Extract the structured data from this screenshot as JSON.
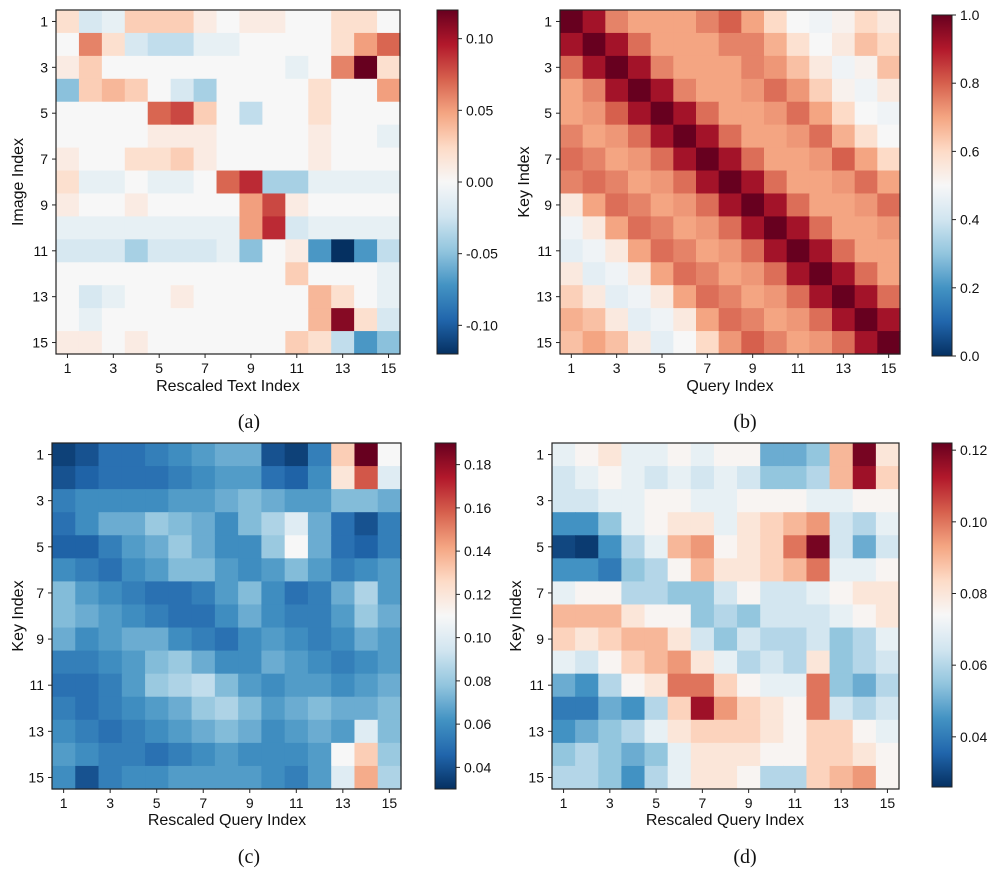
{
  "chart_data": [
    {
      "type": "heatmap",
      "caption": "(a)",
      "xlabel": "Rescaled Text Index",
      "ylabel": "Image Index",
      "x_ticks": [
        "1",
        "3",
        "5",
        "7",
        "9",
        "11",
        "13",
        "15"
      ],
      "y_ticks": [
        "1",
        "3",
        "5",
        "7",
        "9",
        "11",
        "13",
        "15"
      ],
      "colorscale": "RdBu_r",
      "vmin": -0.12,
      "vmax": 0.12,
      "colorbar_ticks": [
        {
          "value": 0.1,
          "label": "0.10"
        },
        {
          "value": 0.05,
          "label": "0.05"
        },
        {
          "value": 0.0,
          "label": "0.00"
        },
        {
          "value": -0.05,
          "label": "-0.05"
        },
        {
          "value": -0.1,
          "label": "-0.10"
        }
      ],
      "values": [
        [
          0.02,
          -0.02,
          -0.01,
          0.03,
          0.03,
          0.03,
          0.01,
          0.0,
          0.01,
          0.01,
          0.0,
          0.0,
          0.02,
          0.02,
          0.0
        ],
        [
          0.0,
          0.06,
          0.02,
          -0.02,
          -0.03,
          -0.03,
          -0.01,
          -0.01,
          0.0,
          0.0,
          0.0,
          0.0,
          0.02,
          0.05,
          0.07
        ],
        [
          0.01,
          0.03,
          0.0,
          0.0,
          0.0,
          0.0,
          0.0,
          0.0,
          0.0,
          0.0,
          -0.01,
          0.0,
          0.06,
          0.12,
          0.02
        ],
        [
          -0.05,
          0.03,
          0.04,
          0.03,
          0.0,
          -0.02,
          -0.04,
          0.0,
          0.0,
          0.0,
          0.0,
          0.02,
          0.0,
          0.0,
          0.05
        ],
        [
          0.0,
          0.0,
          0.0,
          0.0,
          0.07,
          0.08,
          0.03,
          0.0,
          -0.03,
          0.0,
          0.0,
          0.02,
          0.0,
          0.0,
          0.0
        ],
        [
          0.0,
          0.0,
          0.0,
          0.0,
          0.01,
          0.01,
          0.01,
          0.0,
          0.0,
          0.0,
          0.0,
          0.01,
          0.0,
          0.0,
          -0.01
        ],
        [
          0.01,
          0.0,
          0.0,
          0.02,
          0.02,
          0.03,
          0.01,
          0.0,
          0.0,
          0.0,
          0.0,
          0.01,
          0.0,
          0.0,
          0.0
        ],
        [
          0.02,
          -0.01,
          -0.01,
          0.0,
          -0.01,
          -0.01,
          0.0,
          0.07,
          0.09,
          -0.04,
          -0.04,
          -0.01,
          -0.01,
          -0.01,
          -0.01
        ],
        [
          0.01,
          0.0,
          0.0,
          0.01,
          0.0,
          0.0,
          0.0,
          0.0,
          0.05,
          0.08,
          0.01,
          0.0,
          0.0,
          0.0,
          0.0
        ],
        [
          -0.01,
          -0.01,
          -0.01,
          -0.01,
          -0.01,
          -0.01,
          -0.01,
          -0.01,
          0.05,
          0.09,
          -0.02,
          -0.01,
          -0.01,
          -0.01,
          -0.01
        ],
        [
          -0.02,
          -0.02,
          -0.02,
          -0.04,
          -0.02,
          -0.02,
          -0.02,
          -0.01,
          -0.05,
          0.0,
          0.01,
          -0.07,
          -0.12,
          -0.07,
          -0.03
        ],
        [
          0.0,
          0.0,
          0.0,
          0.0,
          0.0,
          0.0,
          0.0,
          0.0,
          0.0,
          0.0,
          0.03,
          0.0,
          0.0,
          0.0,
          -0.01
        ],
        [
          0.0,
          -0.02,
          -0.01,
          0.0,
          0.0,
          0.01,
          0.0,
          0.0,
          0.0,
          0.0,
          0.0,
          0.04,
          0.02,
          0.0,
          -0.01
        ],
        [
          0.0,
          -0.01,
          0.0,
          0.0,
          0.0,
          0.0,
          0.0,
          0.0,
          0.0,
          0.0,
          0.0,
          0.04,
          0.11,
          0.02,
          -0.02
        ],
        [
          0.01,
          0.01,
          0.0,
          0.01,
          0.0,
          0.0,
          0.0,
          0.0,
          0.0,
          0.0,
          0.03,
          0.02,
          -0.03,
          -0.07,
          -0.05
        ]
      ]
    },
    {
      "type": "heatmap",
      "caption": "(b)",
      "xlabel": "Query Index",
      "ylabel": "Key Index",
      "x_ticks": [
        "1",
        "3",
        "5",
        "7",
        "9",
        "11",
        "13",
        "15"
      ],
      "y_ticks": [
        "1",
        "3",
        "5",
        "7",
        "9",
        "11",
        "13",
        "15"
      ],
      "colorscale": "RdBu_r",
      "vmin": 0.0,
      "vmax": 1.0,
      "colorbar_ticks": [
        {
          "value": 1.0,
          "label": "1.0"
        },
        {
          "value": 0.8,
          "label": "0.8"
        },
        {
          "value": 0.6,
          "label": "0.6"
        },
        {
          "value": 0.4,
          "label": "0.4"
        },
        {
          "value": 0.2,
          "label": "0.2"
        },
        {
          "value": 0.0,
          "label": "0.0"
        }
      ],
      "values": [
        [
          1.0,
          0.92,
          0.75,
          0.7,
          0.7,
          0.7,
          0.75,
          0.8,
          0.7,
          0.6,
          0.5,
          0.48,
          0.52,
          0.6,
          0.55
        ],
        [
          0.92,
          1.0,
          0.92,
          0.78,
          0.7,
          0.7,
          0.7,
          0.75,
          0.75,
          0.68,
          0.58,
          0.5,
          0.55,
          0.65,
          0.6
        ],
        [
          0.78,
          0.92,
          1.0,
          0.92,
          0.75,
          0.7,
          0.7,
          0.7,
          0.75,
          0.72,
          0.65,
          0.55,
          0.48,
          0.52,
          0.65
        ],
        [
          0.7,
          0.75,
          0.92,
          1.0,
          0.92,
          0.75,
          0.7,
          0.7,
          0.72,
          0.78,
          0.72,
          0.62,
          0.52,
          0.48,
          0.55
        ],
        [
          0.7,
          0.72,
          0.8,
          0.92,
          1.0,
          0.92,
          0.78,
          0.7,
          0.7,
          0.72,
          0.78,
          0.7,
          0.6,
          0.5,
          0.48
        ],
        [
          0.75,
          0.7,
          0.72,
          0.78,
          0.92,
          1.0,
          0.92,
          0.78,
          0.7,
          0.7,
          0.72,
          0.78,
          0.68,
          0.58,
          0.5
        ],
        [
          0.78,
          0.75,
          0.7,
          0.72,
          0.78,
          0.92,
          1.0,
          0.92,
          0.78,
          0.7,
          0.7,
          0.72,
          0.8,
          0.7,
          0.6
        ],
        [
          0.75,
          0.78,
          0.75,
          0.7,
          0.72,
          0.78,
          0.92,
          1.0,
          0.92,
          0.78,
          0.7,
          0.7,
          0.72,
          0.78,
          0.7
        ],
        [
          0.55,
          0.7,
          0.78,
          0.75,
          0.7,
          0.72,
          0.78,
          0.92,
          1.0,
          0.92,
          0.78,
          0.7,
          0.7,
          0.72,
          0.78
        ],
        [
          0.48,
          0.55,
          0.7,
          0.78,
          0.75,
          0.7,
          0.72,
          0.78,
          0.92,
          1.0,
          0.92,
          0.78,
          0.7,
          0.7,
          0.72
        ],
        [
          0.45,
          0.48,
          0.55,
          0.7,
          0.78,
          0.75,
          0.7,
          0.72,
          0.78,
          0.92,
          1.0,
          0.92,
          0.78,
          0.7,
          0.7
        ],
        [
          0.55,
          0.45,
          0.48,
          0.55,
          0.7,
          0.78,
          0.75,
          0.7,
          0.72,
          0.78,
          0.92,
          1.0,
          0.92,
          0.78,
          0.7
        ],
        [
          0.62,
          0.55,
          0.45,
          0.48,
          0.55,
          0.7,
          0.78,
          0.75,
          0.7,
          0.72,
          0.78,
          0.92,
          1.0,
          0.92,
          0.78
        ],
        [
          0.68,
          0.65,
          0.55,
          0.45,
          0.48,
          0.55,
          0.7,
          0.78,
          0.75,
          0.7,
          0.72,
          0.78,
          0.92,
          1.0,
          0.92
        ],
        [
          0.65,
          0.7,
          0.65,
          0.55,
          0.45,
          0.5,
          0.6,
          0.72,
          0.8,
          0.75,
          0.7,
          0.72,
          0.78,
          0.92,
          1.0
        ]
      ]
    },
    {
      "type": "heatmap",
      "caption": "(c)",
      "xlabel": "Rescaled Query Index",
      "ylabel": "Key Index",
      "x_ticks": [
        "1",
        "3",
        "5",
        "7",
        "9",
        "11",
        "13",
        "15"
      ],
      "y_ticks": [
        "1",
        "3",
        "5",
        "7",
        "9",
        "11",
        "13",
        "15"
      ],
      "colorscale": "RdBu_r",
      "vmin": 0.03,
      "vmax": 0.19,
      "colorbar_ticks": [
        {
          "value": 0.18,
          "label": "0.18"
        },
        {
          "value": 0.16,
          "label": "0.16"
        },
        {
          "value": 0.14,
          "label": "0.14"
        },
        {
          "value": 0.12,
          "label": "0.12"
        },
        {
          "value": 0.1,
          "label": "0.10"
        },
        {
          "value": 0.08,
          "label": "0.08"
        },
        {
          "value": 0.06,
          "label": "0.06"
        },
        {
          "value": 0.04,
          "label": "0.04"
        }
      ],
      "values": [
        [
          0.035,
          0.04,
          0.05,
          0.05,
          0.055,
          0.06,
          0.065,
          0.07,
          0.07,
          0.04,
          0.035,
          0.055,
          0.13,
          0.19,
          0.11
        ],
        [
          0.04,
          0.045,
          0.05,
          0.05,
          0.05,
          0.055,
          0.06,
          0.065,
          0.065,
          0.05,
          0.045,
          0.06,
          0.12,
          0.16,
          0.1
        ],
        [
          0.055,
          0.06,
          0.06,
          0.06,
          0.06,
          0.065,
          0.065,
          0.07,
          0.075,
          0.07,
          0.065,
          0.065,
          0.075,
          0.075,
          0.07
        ],
        [
          0.05,
          0.06,
          0.07,
          0.07,
          0.08,
          0.075,
          0.07,
          0.06,
          0.075,
          0.085,
          0.1,
          0.07,
          0.05,
          0.04,
          0.055
        ],
        [
          0.045,
          0.045,
          0.055,
          0.065,
          0.07,
          0.08,
          0.07,
          0.06,
          0.06,
          0.08,
          0.11,
          0.07,
          0.05,
          0.045,
          0.055
        ],
        [
          0.06,
          0.055,
          0.05,
          0.06,
          0.065,
          0.075,
          0.075,
          0.065,
          0.06,
          0.065,
          0.075,
          0.065,
          0.055,
          0.06,
          0.065
        ],
        [
          0.075,
          0.065,
          0.06,
          0.055,
          0.05,
          0.05,
          0.055,
          0.065,
          0.075,
          0.06,
          0.05,
          0.055,
          0.07,
          0.085,
          0.065
        ],
        [
          0.075,
          0.07,
          0.065,
          0.06,
          0.055,
          0.05,
          0.05,
          0.06,
          0.07,
          0.06,
          0.055,
          0.055,
          0.065,
          0.08,
          0.07
        ],
        [
          0.07,
          0.06,
          0.065,
          0.07,
          0.07,
          0.06,
          0.055,
          0.05,
          0.06,
          0.065,
          0.06,
          0.055,
          0.06,
          0.07,
          0.065
        ],
        [
          0.055,
          0.055,
          0.06,
          0.065,
          0.075,
          0.08,
          0.07,
          0.06,
          0.06,
          0.07,
          0.065,
          0.06,
          0.055,
          0.06,
          0.065
        ],
        [
          0.05,
          0.05,
          0.055,
          0.065,
          0.08,
          0.085,
          0.09,
          0.075,
          0.065,
          0.06,
          0.065,
          0.065,
          0.06,
          0.065,
          0.07
        ],
        [
          0.055,
          0.05,
          0.055,
          0.06,
          0.065,
          0.07,
          0.08,
          0.085,
          0.075,
          0.065,
          0.07,
          0.075,
          0.07,
          0.07,
          0.075
        ],
        [
          0.06,
          0.055,
          0.05,
          0.055,
          0.06,
          0.065,
          0.07,
          0.075,
          0.07,
          0.06,
          0.065,
          0.07,
          0.065,
          0.1,
          0.075
        ],
        [
          0.065,
          0.06,
          0.055,
          0.055,
          0.05,
          0.055,
          0.06,
          0.065,
          0.06,
          0.06,
          0.06,
          0.065,
          0.11,
          0.13,
          0.08
        ],
        [
          0.06,
          0.04,
          0.055,
          0.06,
          0.06,
          0.065,
          0.065,
          0.065,
          0.065,
          0.06,
          0.055,
          0.065,
          0.1,
          0.14,
          0.085
        ]
      ]
    },
    {
      "type": "heatmap",
      "caption": "(d)",
      "xlabel": "Rescaled Query Index",
      "ylabel": "Key Index",
      "x_ticks": [
        "1",
        "3",
        "5",
        "7",
        "9",
        "11",
        "13",
        "15"
      ],
      "y_ticks": [
        "1",
        "3",
        "5",
        "7",
        "9",
        "11",
        "13",
        "15"
      ],
      "colorscale": "RdBu_r",
      "vmin": 0.026,
      "vmax": 0.122,
      "colorbar_ticks": [
        {
          "value": 0.12,
          "label": "0.12"
        },
        {
          "value": 0.1,
          "label": "0.10"
        },
        {
          "value": 0.08,
          "label": "0.08"
        },
        {
          "value": 0.06,
          "label": "0.06"
        },
        {
          "value": 0.04,
          "label": "0.04"
        }
      ],
      "values": [
        [
          0.07,
          0.075,
          0.08,
          0.07,
          0.07,
          0.075,
          0.07,
          0.075,
          0.075,
          0.05,
          0.05,
          0.055,
          0.09,
          0.12,
          0.08
        ],
        [
          0.065,
          0.07,
          0.075,
          0.07,
          0.065,
          0.07,
          0.065,
          0.07,
          0.065,
          0.055,
          0.055,
          0.06,
          0.09,
          0.115,
          0.085
        ],
        [
          0.065,
          0.065,
          0.07,
          0.07,
          0.075,
          0.075,
          0.07,
          0.07,
          0.075,
          0.075,
          0.075,
          0.07,
          0.07,
          0.075,
          0.075
        ],
        [
          0.045,
          0.045,
          0.055,
          0.07,
          0.075,
          0.08,
          0.08,
          0.07,
          0.08,
          0.085,
          0.09,
          0.095,
          0.065,
          0.06,
          0.07
        ],
        [
          0.03,
          0.028,
          0.045,
          0.06,
          0.07,
          0.09,
          0.095,
          0.075,
          0.08,
          0.085,
          0.1,
          0.12,
          0.065,
          0.05,
          0.065
        ],
        [
          0.045,
          0.045,
          0.04,
          0.055,
          0.06,
          0.075,
          0.09,
          0.08,
          0.08,
          0.085,
          0.09,
          0.1,
          0.07,
          0.07,
          0.075
        ],
        [
          0.07,
          0.075,
          0.075,
          0.06,
          0.06,
          0.055,
          0.055,
          0.065,
          0.075,
          0.065,
          0.065,
          0.07,
          0.075,
          0.08,
          0.08
        ],
        [
          0.09,
          0.09,
          0.09,
          0.08,
          0.075,
          0.075,
          0.055,
          0.06,
          0.055,
          0.065,
          0.065,
          0.065,
          0.07,
          0.075,
          0.08
        ],
        [
          0.085,
          0.08,
          0.085,
          0.09,
          0.09,
          0.08,
          0.065,
          0.055,
          0.065,
          0.06,
          0.06,
          0.065,
          0.055,
          0.06,
          0.07
        ],
        [
          0.07,
          0.065,
          0.075,
          0.085,
          0.09,
          0.095,
          0.08,
          0.07,
          0.06,
          0.065,
          0.06,
          0.08,
          0.055,
          0.06,
          0.065
        ],
        [
          0.05,
          0.045,
          0.06,
          0.075,
          0.08,
          0.1,
          0.1,
          0.085,
          0.075,
          0.07,
          0.07,
          0.1,
          0.055,
          0.05,
          0.06
        ],
        [
          0.04,
          0.04,
          0.05,
          0.045,
          0.06,
          0.085,
          0.115,
          0.095,
          0.085,
          0.08,
          0.075,
          0.1,
          0.065,
          0.06,
          0.065
        ],
        [
          0.045,
          0.05,
          0.055,
          0.06,
          0.07,
          0.08,
          0.085,
          0.085,
          0.085,
          0.08,
          0.075,
          0.085,
          0.085,
          0.075,
          0.07
        ],
        [
          0.055,
          0.06,
          0.055,
          0.05,
          0.055,
          0.07,
          0.08,
          0.08,
          0.08,
          0.075,
          0.075,
          0.085,
          0.085,
          0.08,
          0.075
        ],
        [
          0.06,
          0.06,
          0.055,
          0.045,
          0.06,
          0.07,
          0.08,
          0.08,
          0.075,
          0.06,
          0.06,
          0.085,
          0.09,
          0.095,
          0.075
        ]
      ]
    }
  ]
}
